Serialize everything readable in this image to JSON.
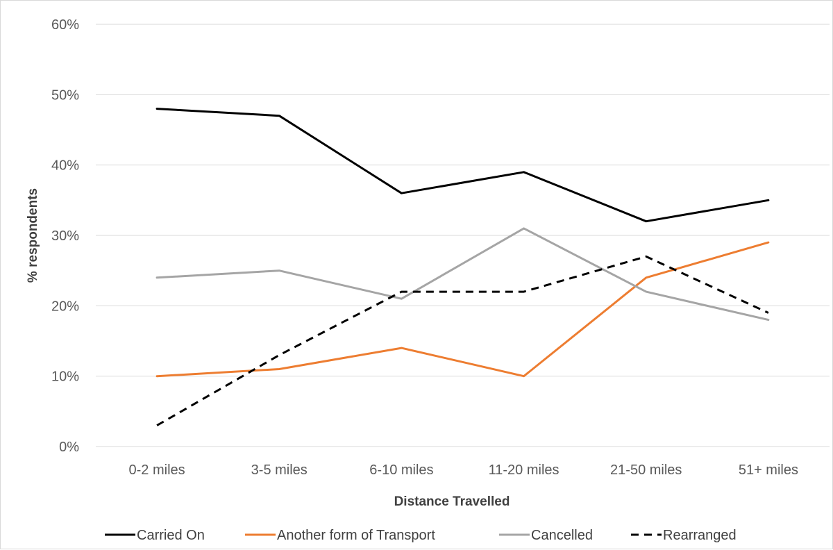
{
  "chart_data": {
    "type": "line",
    "title": "",
    "xlabel": "Distance Travelled",
    "ylabel": "% respondents",
    "categories": [
      "0-2 miles",
      "3-5 miles",
      "6-10 miles",
      "11-20 miles",
      "21-50 miles",
      "51+ miles"
    ],
    "ylim": [
      0,
      60
    ],
    "yticks": [
      0,
      10,
      20,
      30,
      40,
      50,
      60
    ],
    "ytick_labels": [
      "0%",
      "10%",
      "20%",
      "30%",
      "40%",
      "50%",
      "60%"
    ],
    "grid": "horizontal",
    "legend": "bottom",
    "series": [
      {
        "name": "Carried On",
        "values": [
          48,
          47,
          36,
          39,
          32,
          35
        ],
        "color": "#000000",
        "dash": false
      },
      {
        "name": "Another form of Transport",
        "values": [
          10,
          11,
          14,
          10,
          24,
          29
        ],
        "color": "#ed7d31",
        "dash": false
      },
      {
        "name": "Cancelled",
        "values": [
          24,
          25,
          21,
          31,
          22,
          18
        ],
        "color": "#a5a5a5",
        "dash": false
      },
      {
        "name": "Rearranged",
        "values": [
          3,
          13,
          22,
          22,
          27,
          19
        ],
        "color": "#000000",
        "dash": true
      }
    ]
  }
}
